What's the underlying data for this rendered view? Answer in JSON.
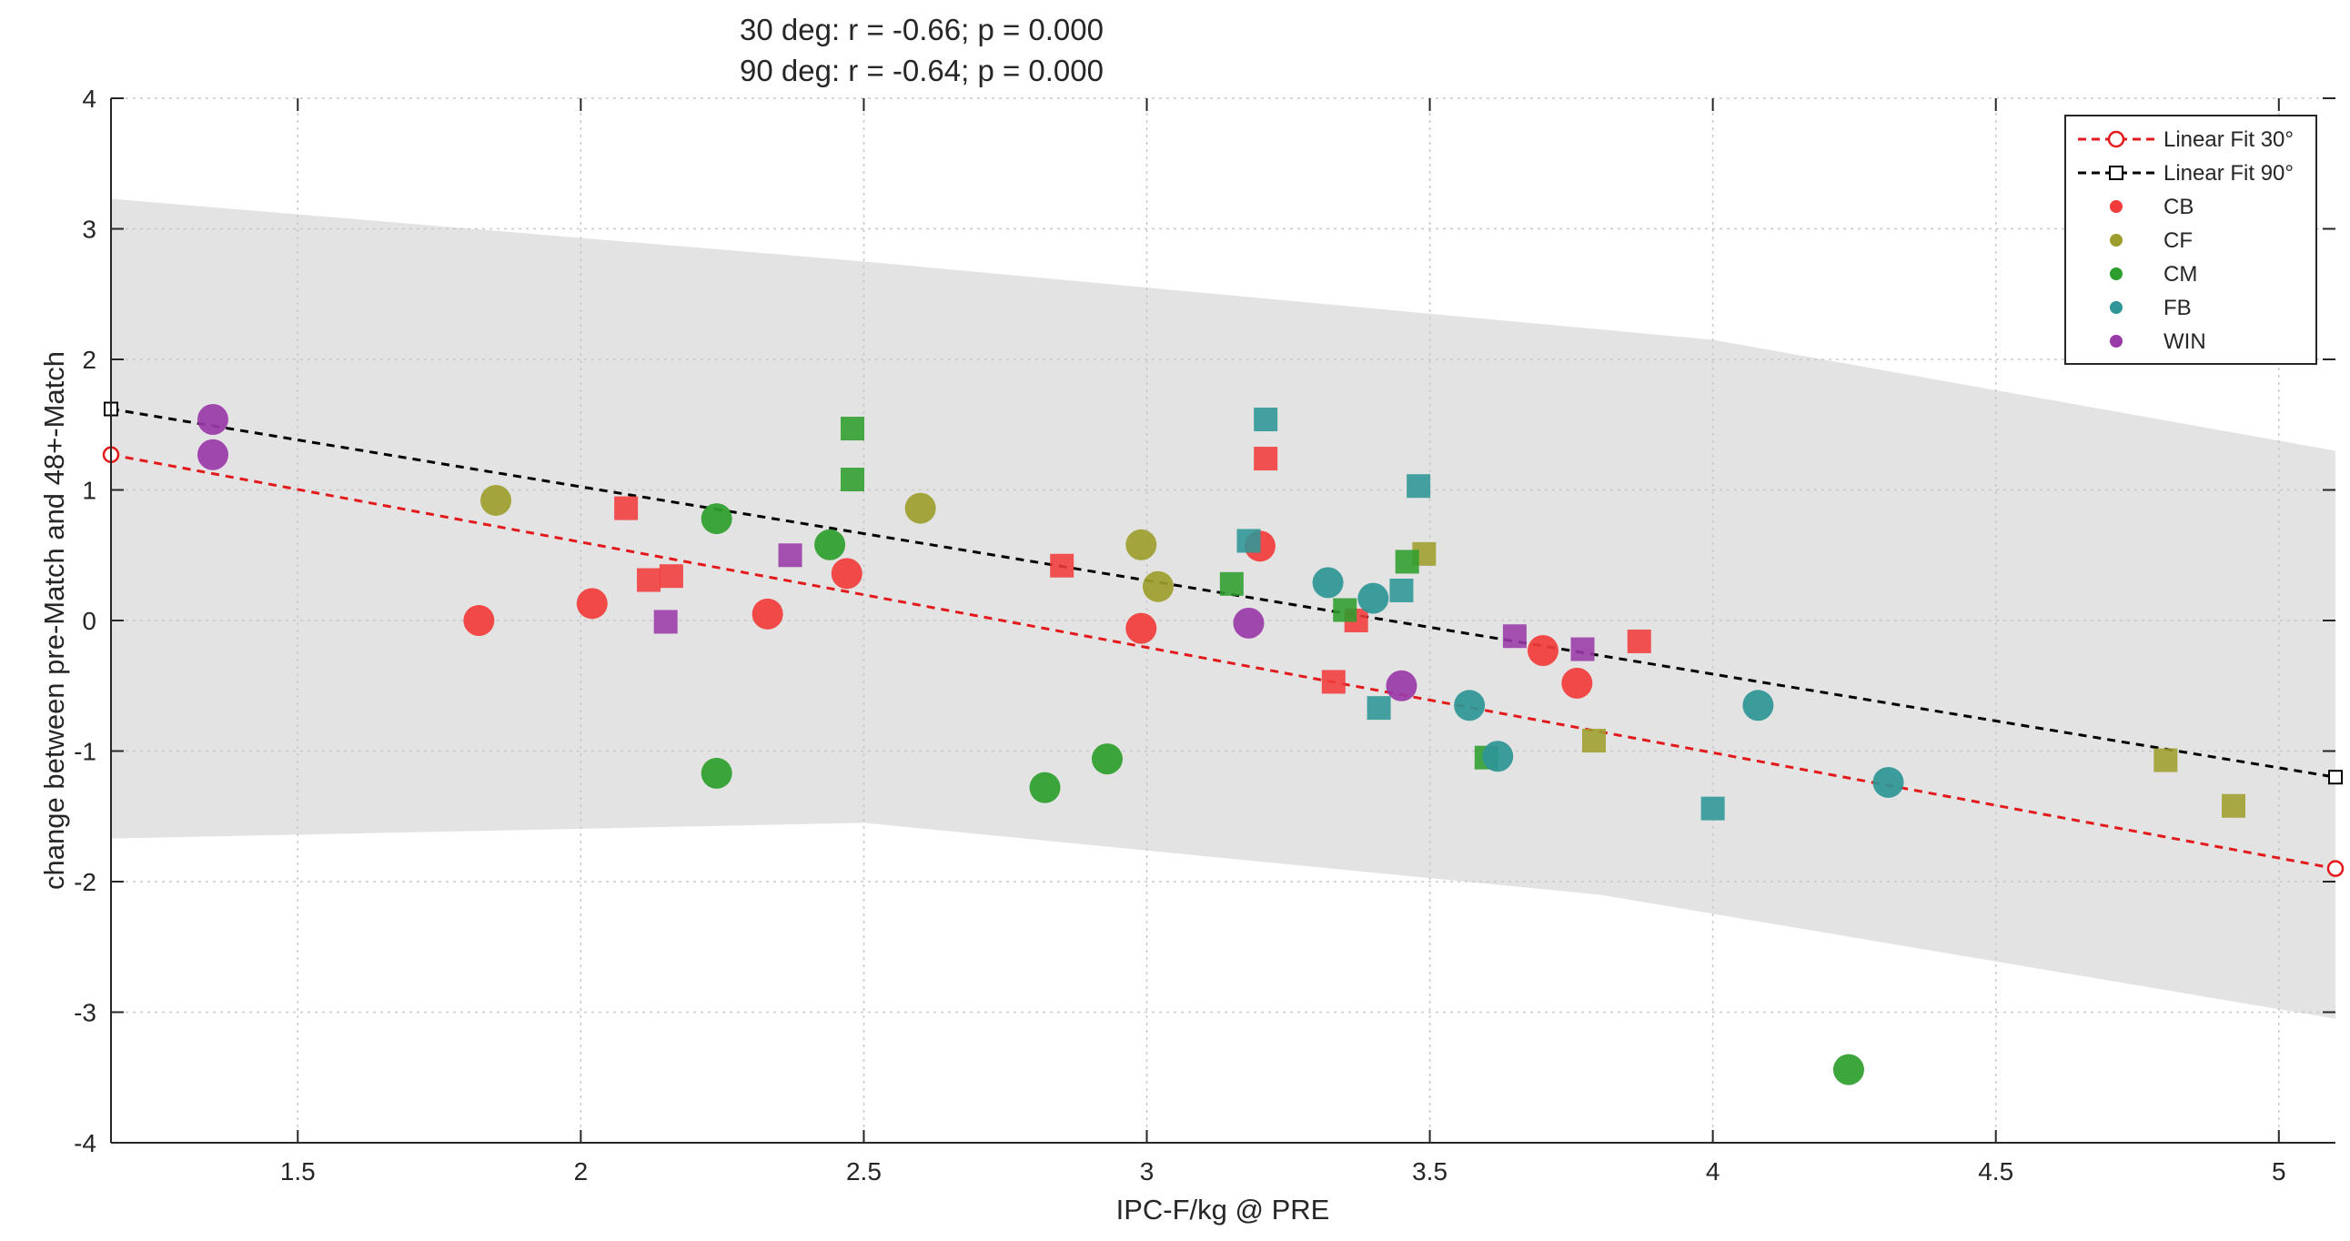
{
  "chart_data": {
    "type": "scatter",
    "title": [
      "30 deg: r = -0.66; p = 0.000",
      "90 deg: r = -0.64; p = 0.000"
    ],
    "xlabel": "IPC-F/kg @ PRE",
    "ylabel": "change between pre-Match and 48+-Match",
    "xlim": [
      1.17,
      5.1
    ],
    "ylim": [
      -4,
      4
    ],
    "xticks": [
      1.5,
      2,
      2.5,
      3,
      3.5,
      4,
      4.5,
      5
    ],
    "xtick_labels": [
      "1.5",
      "2",
      "2.5",
      "3",
      "3.5",
      "4",
      "4.5",
      "5"
    ],
    "yticks": [
      -4,
      -3,
      -2,
      -1,
      0,
      1,
      2,
      3,
      4
    ],
    "ytick_labels": [
      "-4",
      "-3",
      "-2",
      "-1",
      "0",
      "1",
      "2",
      "3",
      "4"
    ],
    "grid": true,
    "legend_position": "top-right",
    "legend": [
      {
        "label": "Linear Fit 30°",
        "kind": "fit30"
      },
      {
        "label": "Linear Fit 90°",
        "kind": "fit90"
      },
      {
        "label": "CB",
        "kind": "group",
        "group": "CB"
      },
      {
        "label": "CF",
        "kind": "group",
        "group": "CF"
      },
      {
        "label": "CM",
        "kind": "group",
        "group": "CM"
      },
      {
        "label": "FB",
        "kind": "group",
        "group": "FB"
      },
      {
        "label": "WIN",
        "kind": "group",
        "group": "WIN"
      }
    ],
    "colors": {
      "CB": "#f23b3b",
      "CF": "#9e9e2e",
      "CM": "#2d9e2d",
      "FB": "#2e9696",
      "WIN": "#9a3aa8",
      "fit30": "#e31a1c",
      "fit90": "#000000",
      "band": "#e3e3e3"
    },
    "fits": {
      "fit30": {
        "label": "Linear Fit 30°",
        "x": [
          1.17,
          5.1
        ],
        "y": [
          1.27,
          -1.9
        ]
      },
      "fit90": {
        "label": "Linear Fit 90°",
        "x": [
          1.17,
          5.1
        ],
        "y": [
          1.62,
          -1.2
        ]
      }
    },
    "confidence_band": {
      "upper": [
        [
          1.17,
          3.23
        ],
        [
          2.5,
          2.75
        ],
        [
          4.0,
          2.15
        ],
        [
          5.1,
          1.3
        ]
      ],
      "lower": [
        [
          1.17,
          -1.67
        ],
        [
          2.5,
          -1.55
        ],
        [
          3.8,
          -2.1
        ],
        [
          5.1,
          -3.05
        ]
      ]
    },
    "series": [
      {
        "name": "CB",
        "angle": "30 deg",
        "marker": "circle",
        "points": [
          [
            1.82,
            0.0
          ],
          [
            2.02,
            0.13
          ],
          [
            2.33,
            0.05
          ],
          [
            2.47,
            0.36
          ],
          [
            2.99,
            -0.06
          ],
          [
            3.2,
            0.57
          ],
          [
            3.7,
            -0.23
          ],
          [
            3.76,
            -0.48
          ]
        ]
      },
      {
        "name": "CB",
        "angle": "90 deg",
        "marker": "square",
        "points": [
          [
            2.08,
            0.86
          ],
          [
            2.12,
            0.31
          ],
          [
            2.16,
            0.34
          ],
          [
            2.85,
            0.42
          ],
          [
            3.21,
            1.24
          ],
          [
            3.33,
            -0.47
          ],
          [
            3.37,
            0.0
          ],
          [
            3.87,
            -0.16
          ]
        ]
      },
      {
        "name": "CF",
        "angle": "30 deg",
        "marker": "circle",
        "points": [
          [
            1.85,
            0.92
          ],
          [
            2.6,
            0.86
          ],
          [
            2.99,
            0.58
          ],
          [
            3.02,
            0.26
          ]
        ]
      },
      {
        "name": "CF",
        "angle": "90 deg",
        "marker": "square",
        "points": [
          [
            3.49,
            0.51
          ],
          [
            3.79,
            -0.92
          ],
          [
            4.8,
            -1.07
          ],
          [
            4.92,
            -1.42
          ]
        ]
      },
      {
        "name": "CM",
        "angle": "30 deg",
        "marker": "circle",
        "points": [
          [
            2.24,
            0.78
          ],
          [
            2.44,
            0.58
          ],
          [
            2.24,
            -1.17
          ],
          [
            2.82,
            -1.28
          ],
          [
            2.93,
            -1.06
          ],
          [
            4.24,
            -3.44
          ]
        ]
      },
      {
        "name": "CM",
        "angle": "90 deg",
        "marker": "square",
        "points": [
          [
            2.48,
            1.47
          ],
          [
            2.48,
            1.08
          ],
          [
            3.15,
            0.28
          ],
          [
            3.35,
            0.08
          ],
          [
            3.46,
            0.45
          ],
          [
            3.6,
            -1.05
          ]
        ]
      },
      {
        "name": "FB",
        "angle": "30 deg",
        "marker": "circle",
        "points": [
          [
            3.32,
            0.29
          ],
          [
            3.4,
            0.17
          ],
          [
            3.57,
            -0.65
          ],
          [
            3.62,
            -1.04
          ],
          [
            4.08,
            -0.65
          ],
          [
            4.31,
            -1.24
          ]
        ]
      },
      {
        "name": "FB",
        "angle": "90 deg",
        "marker": "square",
        "points": [
          [
            3.21,
            1.54
          ],
          [
            3.18,
            0.61
          ],
          [
            3.41,
            -0.67
          ],
          [
            3.45,
            0.23
          ],
          [
            3.48,
            1.03
          ],
          [
            4.0,
            -1.44
          ]
        ]
      },
      {
        "name": "WIN",
        "angle": "30 deg",
        "marker": "circle",
        "points": [
          [
            1.35,
            1.54
          ],
          [
            1.35,
            1.27
          ],
          [
            3.18,
            -0.02
          ],
          [
            3.45,
            -0.5
          ]
        ]
      },
      {
        "name": "WIN",
        "angle": "90 deg",
        "marker": "square",
        "points": [
          [
            2.15,
            -0.01
          ],
          [
            2.37,
            0.5
          ],
          [
            3.65,
            -0.12
          ],
          [
            3.77,
            -0.22
          ]
        ]
      }
    ]
  }
}
